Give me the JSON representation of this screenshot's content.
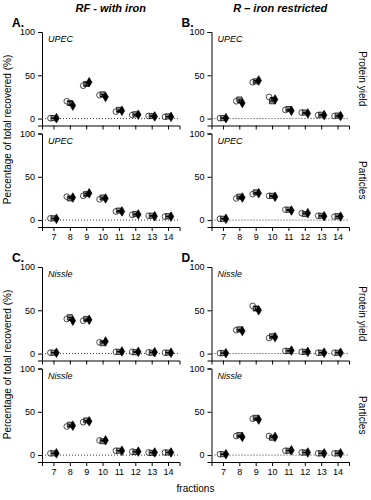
{
  "chart_data": [
    {
      "type": "scatter",
      "title": "A.",
      "subtitle": "RF - with iron",
      "annotations": [
        "UPEC"
      ],
      "y_label": "Percentage of total recovered (%)",
      "x": [
        7,
        8,
        9,
        10,
        11,
        12,
        13,
        14
      ],
      "xlim": [
        6.3,
        14.7
      ],
      "xticks": [
        7,
        8,
        9,
        10,
        11,
        12,
        13,
        14
      ],
      "ylim": [
        -8,
        100
      ],
      "yticks": [
        0,
        50,
        100
      ],
      "tick_labels": "y",
      "reference_lines": [
        {
          "value": 0,
          "line_style": "dotted"
        }
      ],
      "series": [
        {
          "type": "scatter",
          "marker": "circle",
          "color": "#ffffff",
          "values": [
            0.5,
            20,
            38,
            27,
            8,
            4,
            3,
            2
          ]
        },
        {
          "type": "scatter",
          "marker": "square",
          "color": "#888888",
          "values": [
            0.5,
            18,
            40,
            28,
            10,
            5,
            3,
            2.5
          ]
        },
        {
          "type": "scatter",
          "marker": "diamond",
          "color": "#000000",
          "values": [
            0.5,
            15,
            42,
            25,
            9,
            4.5,
            2.5,
            2
          ]
        },
        {
          "type": "errorbar",
          "color": "#000000",
          "values": [
            0.5,
            17.6667,
            40,
            26.6667,
            9,
            4.5,
            2.8333,
            2.1667
          ],
          "error": [
            0,
            2.0548,
            1.633,
            1.2472,
            0.8165,
            0.4082,
            0.2357,
            0.2357
          ]
        }
      ]
    },
    {
      "type": "scatter",
      "title": "B.",
      "subtitle": "R – iron restricted",
      "annotations": [
        "UPEC"
      ],
      "right_label": "Protein yield",
      "x": [
        7,
        8,
        9,
        10,
        11,
        12,
        13,
        14
      ],
      "xlim": [
        6.3,
        14.7
      ],
      "xticks": [
        7,
        8,
        9,
        10,
        11,
        12,
        13,
        14
      ],
      "ylim": [
        -8,
        100
      ],
      "yticks": [
        0,
        50,
        100
      ],
      "tick_labels": "y",
      "reference_lines": [
        {
          "value": 0,
          "line_style": "dotted"
        }
      ],
      "series": [
        {
          "type": "scatter",
          "marker": "circle",
          "color": "#ffffff",
          "values": [
            0.5,
            20,
            42,
            25,
            10,
            7,
            4,
            3
          ]
        },
        {
          "type": "scatter",
          "marker": "square",
          "color": "#888888",
          "values": [
            0.5,
            22,
            43,
            20,
            11,
            7,
            4.5,
            3.5
          ]
        },
        {
          "type": "scatter",
          "marker": "diamond",
          "color": "#000000",
          "values": [
            0.5,
            18,
            44,
            22,
            9,
            6,
            4,
            3
          ]
        },
        {
          "type": "errorbar",
          "color": "#000000",
          "values": [
            0.5,
            20,
            43,
            22.3333,
            10,
            6.6667,
            4.1667,
            3.1667
          ],
          "error": [
            0,
            1.633,
            0.8165,
            2.0548,
            0.8165,
            0.4714,
            0.2357,
            0.2357
          ]
        }
      ]
    },
    {
      "type": "scatter",
      "annotations": [
        "UPEC"
      ],
      "x": [
        7,
        8,
        9,
        10,
        11,
        12,
        13,
        14
      ],
      "xlim": [
        6.3,
        14.7
      ],
      "xticks": [
        7,
        8,
        9,
        10,
        11,
        12,
        13,
        14
      ],
      "ylim": [
        -8,
        100
      ],
      "yticks": [
        0,
        50,
        100
      ],
      "reference_lines": [
        {
          "value": 0,
          "line_style": "dotted"
        }
      ],
      "series": [
        {
          "type": "scatter",
          "marker": "circle",
          "color": "#ffffff",
          "values": [
            2,
            27,
            28,
            24,
            10,
            6,
            5,
            4
          ]
        },
        {
          "type": "scatter",
          "marker": "square",
          "color": "#888888",
          "values": [
            2,
            25,
            30,
            26,
            11,
            7,
            5,
            4.5
          ]
        },
        {
          "type": "scatter",
          "marker": "diamond",
          "color": "#000000",
          "values": [
            1.5,
            26,
            31,
            25,
            10,
            6.5,
            4.5,
            4
          ]
        },
        {
          "type": "errorbar",
          "color": "#000000",
          "values": [
            1.8333,
            26,
            29.6667,
            25,
            10.3333,
            6.5,
            4.8333,
            4.1667
          ],
          "error": [
            0.2357,
            0.8165,
            1.2472,
            0.8165,
            0.4714,
            0.4082,
            0.2357,
            0.2357
          ]
        }
      ]
    },
    {
      "type": "scatter",
      "annotations": [
        "UPEC"
      ],
      "right_label": "Particles",
      "x": [
        7,
        8,
        9,
        10,
        11,
        12,
        13,
        14
      ],
      "xlim": [
        6.3,
        14.7
      ],
      "xticks": [
        7,
        8,
        9,
        10,
        11,
        12,
        13,
        14
      ],
      "ylim": [
        -8,
        100
      ],
      "yticks": [
        0,
        50,
        100
      ],
      "reference_lines": [
        {
          "value": 0,
          "line_style": "dotted"
        }
      ],
      "series": [
        {
          "type": "scatter",
          "marker": "circle",
          "color": "#ffffff",
          "values": [
            1.5,
            25,
            30,
            28,
            12,
            8,
            5,
            4
          ]
        },
        {
          "type": "scatter",
          "marker": "square",
          "color": "#888888",
          "values": [
            1.5,
            27,
            32,
            28,
            12,
            7,
            5,
            4.5
          ]
        },
        {
          "type": "scatter",
          "marker": "diamond",
          "color": "#000000",
          "values": [
            1.5,
            26,
            31,
            27,
            11,
            8,
            4.5,
            4
          ]
        },
        {
          "type": "errorbar",
          "color": "#000000",
          "values": [
            1.5,
            26,
            31,
            27.6667,
            11.6667,
            7.6667,
            4.8333,
            4.1667
          ],
          "error": [
            0,
            0.8165,
            0.8165,
            0.4714,
            0.4714,
            0.4714,
            0.2357,
            0.2357
          ]
        }
      ]
    },
    {
      "type": "scatter",
      "title": "C.",
      "annotations": [
        "Nissle"
      ],
      "y_label": "Percentage of total recovered (%)",
      "x": [
        7,
        8,
        9,
        10,
        11,
        12,
        13,
        14
      ],
      "xlim": [
        6.3,
        14.7
      ],
      "xticks": [
        7,
        8,
        9,
        10,
        11,
        12,
        13,
        14
      ],
      "ylim": [
        -8,
        100
      ],
      "yticks": [
        0,
        50,
        100
      ],
      "tick_labels": "y",
      "reference_lines": [
        {
          "value": 0,
          "line_style": "dotted"
        }
      ],
      "series": [
        {
          "type": "scatter",
          "marker": "circle",
          "color": "#ffffff",
          "values": [
            1,
            40,
            38,
            13,
            2,
            2,
            1.5,
            1
          ]
        },
        {
          "type": "scatter",
          "marker": "square",
          "color": "#888888",
          "values": [
            1,
            42,
            40,
            12,
            2,
            1.5,
            1,
            1
          ]
        },
        {
          "type": "scatter",
          "marker": "diamond",
          "color": "#000000",
          "values": [
            1,
            38,
            39,
            14,
            2.5,
            2,
            1.5,
            1
          ]
        },
        {
          "type": "errorbar",
          "color": "#000000",
          "values": [
            1,
            40,
            39,
            13,
            2.1667,
            1.8333,
            1.3333,
            1
          ],
          "error": [
            0,
            1.633,
            0.8165,
            0.8165,
            0.2357,
            0.2357,
            0.2357,
            0
          ]
        }
      ]
    },
    {
      "type": "scatter",
      "title": "D.",
      "annotations": [
        "Nissle"
      ],
      "right_label": "Protein yield",
      "x": [
        7,
        8,
        9,
        10,
        11,
        12,
        13,
        14
      ],
      "xlim": [
        6.3,
        14.7
      ],
      "xticks": [
        7,
        8,
        9,
        10,
        11,
        12,
        13,
        14
      ],
      "ylim": [
        -8,
        100
      ],
      "yticks": [
        0,
        50,
        100
      ],
      "tick_labels": "y",
      "reference_lines": [
        {
          "value": 0,
          "line_style": "dotted"
        }
      ],
      "series": [
        {
          "type": "scatter",
          "marker": "circle",
          "color": "#ffffff",
          "values": [
            0.5,
            27,
            55,
            18,
            3,
            2,
            1,
            1
          ]
        },
        {
          "type": "scatter",
          "marker": "square",
          "color": "#888888",
          "values": [
            0.5,
            28,
            52,
            20,
            3,
            2,
            1,
            1
          ]
        },
        {
          "type": "scatter",
          "marker": "diamond",
          "color": "#000000",
          "values": [
            0.5,
            26,
            50,
            19,
            3.5,
            2,
            1,
            1
          ]
        },
        {
          "type": "errorbar",
          "color": "#000000",
          "values": [
            0.5,
            27,
            52.3333,
            19,
            3.1667,
            2,
            1,
            1
          ],
          "error": [
            0,
            0.8165,
            2.0548,
            0.8165,
            0.2357,
            0,
            0,
            0
          ]
        }
      ]
    },
    {
      "type": "scatter",
      "annotations": [
        "Nissle"
      ],
      "x_label": "fractions",
      "x": [
        7,
        8,
        9,
        10,
        11,
        12,
        13,
        14
      ],
      "xlim": [
        6.3,
        14.7
      ],
      "xticks": [
        7,
        8,
        9,
        10,
        11,
        12,
        13,
        14
      ],
      "ylim": [
        -8,
        100
      ],
      "yticks": [
        0,
        50,
        100
      ],
      "reference_lines": [
        {
          "value": 0,
          "line_style": "dotted"
        }
      ],
      "series": [
        {
          "type": "scatter",
          "marker": "circle",
          "color": "#ffffff",
          "values": [
            2,
            33,
            38,
            17,
            5,
            4,
            3,
            3
          ]
        },
        {
          "type": "scatter",
          "marker": "square",
          "color": "#888888",
          "values": [
            2,
            35,
            40,
            16,
            5,
            3.5,
            2.5,
            3
          ]
        },
        {
          "type": "scatter",
          "marker": "diamond",
          "color": "#000000",
          "values": [
            2,
            34,
            39,
            17,
            5,
            4,
            3,
            3
          ]
        },
        {
          "type": "errorbar",
          "color": "#000000",
          "values": [
            2,
            34,
            39,
            16.6667,
            5,
            3.8333,
            2.8333,
            3
          ],
          "error": [
            0,
            0.8165,
            0.8165,
            0.4714,
            0,
            0.2357,
            0.2357,
            0
          ]
        }
      ]
    },
    {
      "type": "scatter",
      "annotations": [
        "Nissle"
      ],
      "right_label": "Particles",
      "x": [
        7,
        8,
        9,
        10,
        11,
        12,
        13,
        14
      ],
      "xlim": [
        6.3,
        14.7
      ],
      "xticks": [
        7,
        8,
        9,
        10,
        11,
        12,
        13,
        14
      ],
      "ylim": [
        -8,
        100
      ],
      "yticks": [
        0,
        50,
        100
      ],
      "reference_lines": [
        {
          "value": 0,
          "line_style": "dotted"
        }
      ],
      "series": [
        {
          "type": "scatter",
          "marker": "circle",
          "color": "#ffffff",
          "values": [
            1,
            22,
            42,
            22,
            5,
            3,
            2,
            2
          ]
        },
        {
          "type": "scatter",
          "marker": "square",
          "color": "#888888",
          "values": [
            1,
            23,
            43,
            20,
            5,
            3,
            2,
            2
          ]
        },
        {
          "type": "scatter",
          "marker": "diamond",
          "color": "#000000",
          "values": [
            1,
            21,
            41,
            21,
            5.5,
            3,
            2,
            2
          ]
        },
        {
          "type": "errorbar",
          "color": "#000000",
          "values": [
            1,
            22,
            42,
            21,
            5.1667,
            3,
            2,
            2
          ],
          "error": [
            0,
            0.8165,
            0.8165,
            0.8165,
            0.2357,
            0,
            0,
            0
          ]
        }
      ]
    }
  ]
}
